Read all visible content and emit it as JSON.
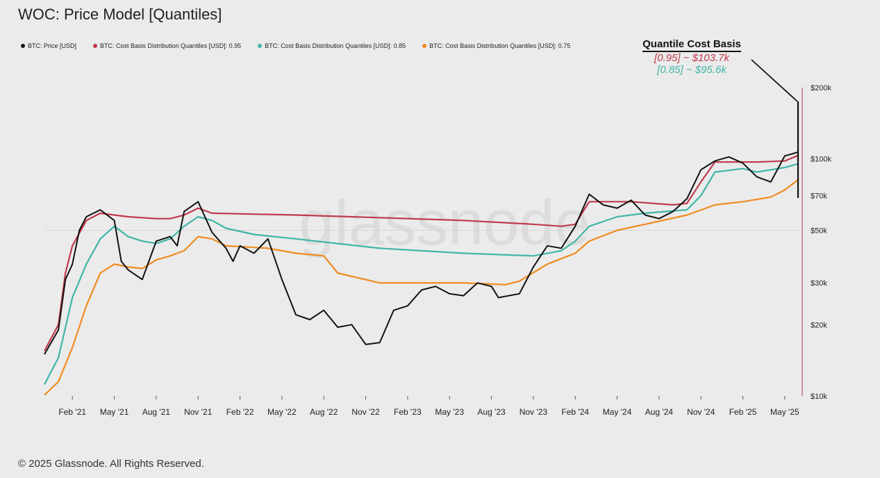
{
  "header": {
    "title": "WOC: Price Model [Quantiles]"
  },
  "legend": [
    {
      "label": "BTC: Price [USD]",
      "color": "#111111"
    },
    {
      "label": "BTC: Cost Basis Distribution Quantiles [USD]: 0.95",
      "color": "#c0394b"
    },
    {
      "label": "BTC: Cost Basis Distribution Quantiles [USD]: 0.85",
      "color": "#3fb5a6"
    },
    {
      "label": "BTC: Cost Basis Distribution Quantiles [USD]: 0.75",
      "color": "#ef8a1e"
    }
  ],
  "annotation": {
    "title": "Quantile Cost Basis",
    "line1": "[0.95] ~ $103.7k",
    "line2": "[0.85] ~ $95.6k"
  },
  "footer": {
    "copyright": "© 2025 Glassnode. All Rights Reserved."
  },
  "watermark": "glassnode",
  "chart_data": {
    "type": "line",
    "y_scale": "log",
    "ylim": [
      10000,
      200000
    ],
    "y_ticks": [
      {
        "value": 10000,
        "label": "$10k"
      },
      {
        "value": 20000,
        "label": "$20k"
      },
      {
        "value": 30000,
        "label": "$30k"
      },
      {
        "value": 50000,
        "label": "$50k"
      },
      {
        "value": 70000,
        "label": "$70k"
      },
      {
        "value": 100000,
        "label": "$100k"
      },
      {
        "value": 200000,
        "label": "$200k"
      }
    ],
    "x_ticks": [
      "Feb '21",
      "May '21",
      "Aug '21",
      "Nov '21",
      "Feb '22",
      "May '22",
      "Aug '22",
      "Nov '22",
      "Feb '23",
      "May '23",
      "Aug '23",
      "Nov '23",
      "Feb '24",
      "May '24",
      "Aug '24",
      "Nov '24",
      "Feb '25",
      "May '25"
    ],
    "x_range": [
      "Dec '20",
      "Jun '25"
    ],
    "series": [
      {
        "name": "BTC: Price [USD]",
        "color": "#111111",
        "points": [
          [
            "Dec '20",
            15000
          ],
          [
            "Jan '21",
            19000
          ],
          [
            "Jan '21",
            31000
          ],
          [
            "Feb '21",
            36000
          ],
          [
            "Feb '21",
            50000
          ],
          [
            "Mar '21",
            57000
          ],
          [
            "Apr '21",
            61000
          ],
          [
            "May '21",
            55000
          ],
          [
            "May '21",
            37000
          ],
          [
            "Jun '21",
            34000
          ],
          [
            "Jul '21",
            31000
          ],
          [
            "Aug '21",
            45000
          ],
          [
            "Sep '21",
            47000
          ],
          [
            "Sep '21",
            43000
          ],
          [
            "Oct '21",
            60000
          ],
          [
            "Nov '21",
            66000
          ],
          [
            "Dec '21",
            49000
          ],
          [
            "Jan '22",
            42000
          ],
          [
            "Jan '22",
            37000
          ],
          [
            "Feb '22",
            43000
          ],
          [
            "Mar '22",
            40000
          ],
          [
            "Apr '22",
            46000
          ],
          [
            "May '22",
            31000
          ],
          [
            "Jun '22",
            22000
          ],
          [
            "Jul '22",
            21000
          ],
          [
            "Aug '22",
            23000
          ],
          [
            "Sep '22",
            19500
          ],
          [
            "Oct '22",
            20000
          ],
          [
            "Nov '22",
            16500
          ],
          [
            "Dec '22",
            16800
          ],
          [
            "Jan '23",
            23000
          ],
          [
            "Feb '23",
            24000
          ],
          [
            "Mar '23",
            28000
          ],
          [
            "Apr '23",
            29000
          ],
          [
            "May '23",
            27000
          ],
          [
            "Jun '23",
            26500
          ],
          [
            "Jul '23",
            30000
          ],
          [
            "Aug '23",
            29000
          ],
          [
            "Aug '23",
            26000
          ],
          [
            "Oct '23",
            27000
          ],
          [
            "Nov '23",
            35000
          ],
          [
            "Dec '23",
            43000
          ],
          [
            "Jan '24",
            42000
          ],
          [
            "Feb '24",
            52000
          ],
          [
            "Mar '24",
            71000
          ],
          [
            "Apr '24",
            64000
          ],
          [
            "May '24",
            62000
          ],
          [
            "Jun '24",
            67000
          ],
          [
            "Jul '24",
            58000
          ],
          [
            "Aug '24",
            56000
          ],
          [
            "Sep '24",
            60000
          ],
          [
            "Oct '24",
            68000
          ],
          [
            "Nov '24",
            90000
          ],
          [
            "Dec '24",
            98000
          ],
          [
            "Jan '25",
            102000
          ],
          [
            "Feb '25",
            96000
          ],
          [
            "Mar '25",
            84000
          ],
          [
            "Apr '25",
            80000
          ],
          [
            "May '25",
            103000
          ],
          [
            "Jun '25",
            107000
          ]
        ]
      },
      {
        "name": "BTC: Cost Basis Distribution Quantiles [USD]: 0.95",
        "color": "#c0394b",
        "points": [
          [
            "Dec '20",
            15500
          ],
          [
            "Jan '21",
            20000
          ],
          [
            "Jan '21",
            33000
          ],
          [
            "Feb '21",
            43000
          ],
          [
            "Mar '21",
            55000
          ],
          [
            "Apr '21",
            59000
          ],
          [
            "May '21",
            58000
          ],
          [
            "Jun '21",
            57000
          ],
          [
            "Aug '21",
            56000
          ],
          [
            "Sep '21",
            56000
          ],
          [
            "Oct '21",
            58000
          ],
          [
            "Nov '21",
            62000
          ],
          [
            "Dec '21",
            59000
          ],
          [
            "Jun '22",
            58000
          ],
          [
            "Dec '22",
            56500
          ],
          [
            "Jun '23",
            55000
          ],
          [
            "Nov '23",
            53000
          ],
          [
            "Jan '24",
            52000
          ],
          [
            "Feb '24",
            53000
          ],
          [
            "Mar '24",
            66000
          ],
          [
            "Jun '24",
            66000
          ],
          [
            "Sep '24",
            64000
          ],
          [
            "Oct '24",
            65000
          ],
          [
            "Nov '24",
            80000
          ],
          [
            "Dec '24",
            97000
          ],
          [
            "Mar '25",
            97000
          ],
          [
            "May '25",
            98000
          ],
          [
            "Jun '25",
            103700
          ]
        ]
      },
      {
        "name": "BTC: Cost Basis Distribution Quantiles [USD]: 0.85",
        "color": "#3fb5a6",
        "points": [
          [
            "Dec '20",
            11200
          ],
          [
            "Jan '21",
            14500
          ],
          [
            "Feb '21",
            26000
          ],
          [
            "Mar '21",
            36000
          ],
          [
            "Apr '21",
            46000
          ],
          [
            "May '21",
            52000
          ],
          [
            "Jun '21",
            47000
          ],
          [
            "Jul '21",
            45000
          ],
          [
            "Aug '21",
            44000
          ],
          [
            "Sep '21",
            46000
          ],
          [
            "Oct '21",
            52000
          ],
          [
            "Nov '21",
            57000
          ],
          [
            "Dec '21",
            55000
          ],
          [
            "Jan '22",
            51000
          ],
          [
            "Mar '22",
            48000
          ],
          [
            "Jun '22",
            46000
          ],
          [
            "Dec '22",
            42000
          ],
          [
            "Jun '23",
            40000
          ],
          [
            "Nov '23",
            39000
          ],
          [
            "Jan '24",
            41000
          ],
          [
            "Feb '24",
            45000
          ],
          [
            "Mar '24",
            52000
          ],
          [
            "May '24",
            57000
          ],
          [
            "Jul '24",
            59000
          ],
          [
            "Oct '24",
            61000
          ],
          [
            "Nov '24",
            70000
          ],
          [
            "Dec '24",
            88000
          ],
          [
            "Feb '25",
            91000
          ],
          [
            "Mar '25",
            88000
          ],
          [
            "May '25",
            92000
          ],
          [
            "Jun '25",
            95600
          ]
        ]
      },
      {
        "name": "BTC: Cost Basis Distribution Quantiles [USD]: 0.75",
        "color": "#ef8a1e",
        "points": [
          [
            "Dec '20",
            10100
          ],
          [
            "Jan '21",
            11500
          ],
          [
            "Feb '21",
            16000
          ],
          [
            "Mar '21",
            24000
          ],
          [
            "Apr '21",
            33000
          ],
          [
            "May '21",
            36000
          ],
          [
            "Jun '21",
            35000
          ],
          [
            "Jul '21",
            34500
          ],
          [
            "Aug '21",
            37500
          ],
          [
            "Sep '21",
            39000
          ],
          [
            "Oct '21",
            41000
          ],
          [
            "Nov '21",
            47000
          ],
          [
            "Dec '21",
            46000
          ],
          [
            "Jan '22",
            43000
          ],
          [
            "Apr '22",
            42000
          ],
          [
            "Jun '22",
            40000
          ],
          [
            "Aug '22",
            39000
          ],
          [
            "Sep '22",
            33000
          ],
          [
            "Dec '22",
            30000
          ],
          [
            "Jun '23",
            30000
          ],
          [
            "Sep '23",
            29500
          ],
          [
            "Oct '23",
            30500
          ],
          [
            "Dec '23",
            36000
          ],
          [
            "Feb '24",
            40000
          ],
          [
            "Mar '24",
            45000
          ],
          [
            "May '24",
            50000
          ],
          [
            "Jul '24",
            53000
          ],
          [
            "Oct '24",
            58000
          ],
          [
            "Dec '24",
            64000
          ],
          [
            "Feb '25",
            66000
          ],
          [
            "Apr '25",
            69000
          ],
          [
            "May '25",
            74000
          ],
          [
            "Jun '25",
            82000
          ]
        ]
      }
    ]
  }
}
